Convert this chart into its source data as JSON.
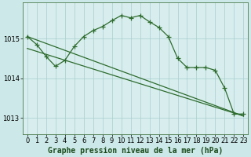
{
  "background_color": "#cce8e8",
  "plot_bg_color": "#d8eeee",
  "grid_color": "#a8cccc",
  "line_color": "#2d6b2d",
  "xlabel": "Graphe pression niveau de la mer (hPa)",
  "xlabel_fontsize": 7,
  "tick_fontsize": 6,
  "xlim": [
    -0.5,
    23.5
  ],
  "ylim": [
    1012.6,
    1015.9
  ],
  "yticks": [
    1013,
    1014,
    1015
  ],
  "xticks": [
    0,
    1,
    2,
    3,
    4,
    5,
    6,
    7,
    8,
    9,
    10,
    11,
    12,
    13,
    14,
    15,
    16,
    17,
    18,
    19,
    20,
    21,
    22,
    23
  ],
  "line1_x": [
    0,
    23
  ],
  "line1_y": [
    1015.05,
    1013.05
  ],
  "line2_x": [
    0,
    23
  ],
  "line2_y": [
    1014.75,
    1013.05
  ],
  "series_x": [
    0,
    1,
    2,
    3,
    4,
    5,
    6,
    7,
    8,
    9,
    10,
    11,
    12,
    13,
    14,
    15,
    16,
    17,
    18,
    19,
    20,
    21,
    22,
    23
  ],
  "series_y": [
    1015.05,
    1014.85,
    1014.55,
    1014.3,
    1014.45,
    1014.8,
    1015.05,
    1015.2,
    1015.3,
    1015.45,
    1015.58,
    1015.52,
    1015.58,
    1015.42,
    1015.28,
    1015.05,
    1014.5,
    1014.27,
    1014.27,
    1014.27,
    1014.2,
    1013.75,
    1013.1,
    1013.1
  ],
  "marker": "+",
  "markersize": 4,
  "linewidth": 0.9,
  "figsize": [
    3.2,
    2.0
  ],
  "dpi": 100
}
